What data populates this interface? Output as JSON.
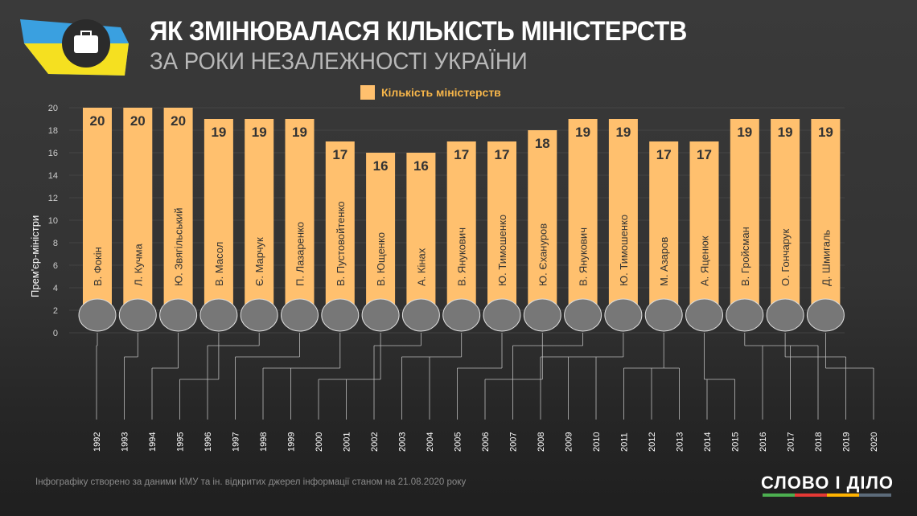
{
  "header": {
    "title": "ЯК ЗМІНЮВАЛАСЯ КІЛЬКІСТЬ МІНІСТЕРСТВ",
    "subtitle": "ЗА РОКИ НЕЗАЛЕЖНОСТІ УКРАЇНИ"
  },
  "footer": {
    "note": "Інфографіку створено за даними КМУ та ін. відкритих джерел інформації станом на 21.08.2020 року",
    "brand": "СЛОВО І ДІЛО",
    "brand_colors": [
      "#4caf50",
      "#e53935",
      "#ffb300",
      "#5c6b7a"
    ]
  },
  "chart_data": {
    "type": "bar",
    "legend": "Кількість міністерств",
    "ylabel": "Прем'єр-міністри",
    "ylim": [
      0,
      20
    ],
    "yticks": [
      0,
      2,
      4,
      6,
      8,
      10,
      12,
      14,
      16,
      18,
      20
    ],
    "bar_color": "#ffc06e",
    "categories": [
      "В. Фокін",
      "Л. Кучма",
      "Ю. Звягільський",
      "В. Масол",
      "Є. Марчук",
      "П. Лазаренко",
      "В. Пустовойтенко",
      "В. Ющенко",
      "А. Кінах",
      "В. Янукович",
      "Ю. Тимошенко",
      "Ю. Єхануров",
      "В. Янукович",
      "Ю. Тимошенко",
      "М. Азаров",
      "А. Яценюк",
      "В. Гройсман",
      "О. Гончарук",
      "Д. Шмигаль"
    ],
    "values": [
      20,
      20,
      20,
      19,
      19,
      19,
      17,
      16,
      16,
      17,
      17,
      18,
      19,
      19,
      17,
      17,
      19,
      19,
      19
    ],
    "years": [
      "1992",
      "1993",
      "1994",
      "1995",
      "1996",
      "1997",
      "1998",
      "1999",
      "2000",
      "2001",
      "2002",
      "2003",
      "2004",
      "2005",
      "2006",
      "2007",
      "2008",
      "2009",
      "2010",
      "2011",
      "2012",
      "2013",
      "2014",
      "2015",
      "2016",
      "2017",
      "2018",
      "2019",
      "2020"
    ],
    "pm_years": [
      [
        "1992"
      ],
      [
        "1993"
      ],
      [
        "1994"
      ],
      [
        "1995"
      ],
      [
        "1996"
      ],
      [
        "1997"
      ],
      [
        "1998",
        "1999"
      ],
      [
        "2000",
        "2001"
      ],
      [
        "2002"
      ],
      [
        "2003",
        "2004"
      ],
      [
        "2005"
      ],
      [
        "2006"
      ],
      [
        "2007"
      ],
      [
        "2008",
        "2009",
        "2010"
      ],
      [
        "2011",
        "2012",
        "2013"
      ],
      [
        "2014",
        "2015"
      ],
      [
        "2016",
        "2017",
        "2018"
      ],
      [
        "2019"
      ],
      [
        "2020"
      ]
    ]
  }
}
